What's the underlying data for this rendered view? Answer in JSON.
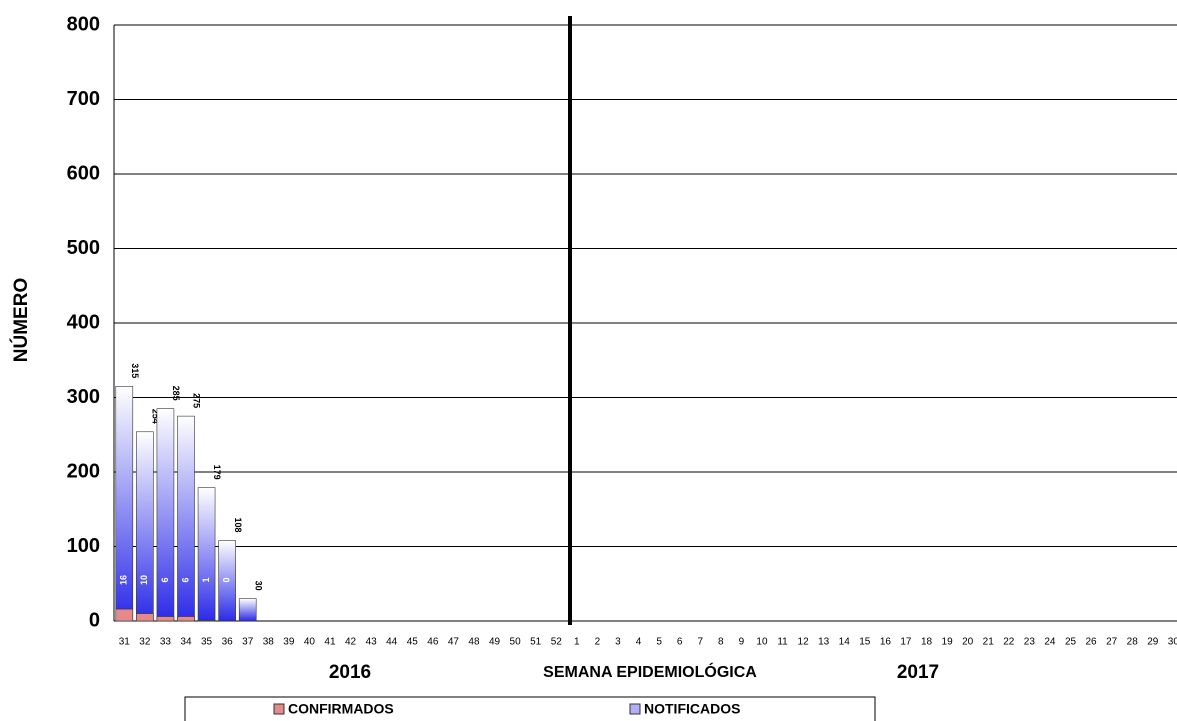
{
  "chart_data": {
    "type": "bar",
    "y_label": "NÚMERO",
    "x_label": "SEMANA EPIDEMIOLÓGICA",
    "annotations": [
      "2016",
      "2017"
    ],
    "categories": [
      "31",
      "32",
      "33",
      "34",
      "35",
      "36",
      "37",
      "38",
      "39",
      "40",
      "41",
      "42",
      "43",
      "44",
      "45",
      "46",
      "47",
      "48",
      "49",
      "50",
      "51",
      "52",
      "1",
      "2",
      "3",
      "4",
      "5",
      "6",
      "7",
      "8",
      "9",
      "10",
      "11",
      "12",
      "13",
      "14",
      "15",
      "16",
      "17",
      "18",
      "19",
      "20",
      "21",
      "22",
      "23",
      "24",
      "25",
      "26",
      "27",
      "28",
      "29",
      "30"
    ],
    "series": [
      {
        "name": "CONFIRMADOS",
        "color": "#e58a8a",
        "values": [
          16,
          10,
          6,
          6,
          1,
          0,
          null,
          null,
          null,
          null,
          null,
          null,
          null,
          null,
          null,
          null,
          null,
          null,
          null,
          null,
          null,
          null,
          null,
          null,
          null,
          null,
          null,
          null,
          null,
          null,
          null,
          null,
          null,
          null,
          null,
          null,
          null,
          null,
          null,
          null,
          null,
          null,
          null,
          null,
          null,
          null,
          null,
          null,
          null,
          null,
          null,
          null
        ]
      },
      {
        "name": "NOTIFICADOS",
        "color": "#2a2ae8",
        "values": [
          315,
          254,
          285,
          275,
          179,
          108,
          30,
          null,
          null,
          null,
          null,
          null,
          null,
          null,
          null,
          null,
          null,
          null,
          null,
          null,
          null,
          null,
          null,
          null,
          null,
          null,
          null,
          null,
          null,
          null,
          null,
          null,
          null,
          null,
          null,
          null,
          null,
          null,
          null,
          null,
          null,
          null,
          null,
          null,
          null,
          null,
          null,
          null,
          null,
          null,
          null,
          null
        ]
      }
    ],
    "ylim": [
      0,
      800
    ],
    "yticks": [
      0,
      100,
      200,
      300,
      400,
      500,
      600,
      700,
      800
    ],
    "grid": true
  }
}
